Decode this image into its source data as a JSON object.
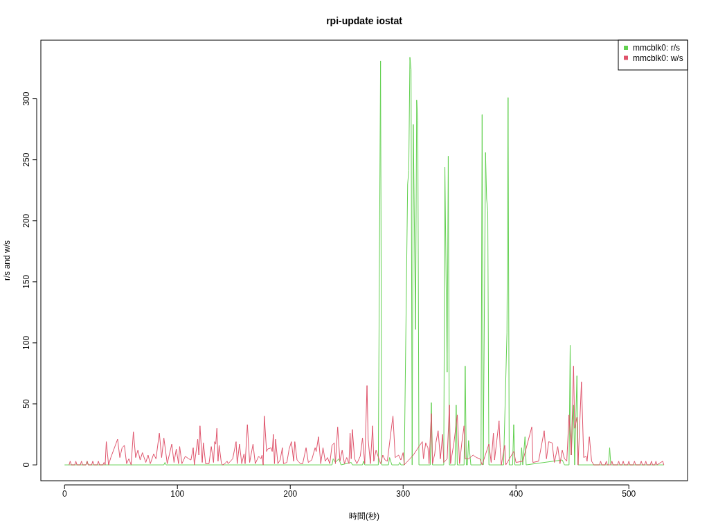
{
  "chart_data": {
    "type": "line",
    "title": "rpi-update iostat",
    "xlabel": "時間(秒)",
    "ylabel": "r/s and w/s",
    "xlim": [
      -21,
      552
    ],
    "ylim": [
      -13,
      348
    ],
    "xticks": [
      0,
      100,
      200,
      300,
      400,
      500
    ],
    "yticks": [
      0,
      50,
      100,
      150,
      200,
      250,
      300
    ],
    "grid": false,
    "legend": "top right",
    "marker": "none",
    "line_style": "solid",
    "series": [
      {
        "name": "mmcblk0: r/s",
        "color": "#61d04f",
        "x": [
          0,
          19,
          20,
          21,
          88,
          89,
          90,
          237,
          238,
          240,
          243,
          245,
          254,
          255,
          264,
          265,
          266,
          278,
          280,
          281,
          287,
          288,
          290,
          296,
          297,
          298,
          301,
          304,
          305,
          306,
          307,
          308,
          309,
          311,
          312,
          313,
          314,
          324,
          325,
          326,
          336,
          337,
          339,
          340,
          341,
          346,
          347,
          348,
          354,
          355,
          356,
          357,
          358,
          360,
          369,
          370,
          371,
          373,
          374,
          375,
          376,
          389,
          392,
          393,
          394,
          397,
          398,
          399,
          404,
          405,
          406,
          408,
          409,
          441,
          443,
          447,
          448,
          449,
          451,
          452,
          454,
          455,
          482,
          483,
          484,
          531
        ],
        "values": [
          0,
          0,
          3,
          0,
          0,
          2,
          0,
          0,
          5,
          2,
          5,
          0,
          2,
          0,
          0,
          3,
          0,
          0,
          331,
          0,
          0,
          6,
          0,
          0,
          2,
          0,
          0,
          230,
          241,
          334,
          324,
          0,
          279,
          111,
          299,
          282,
          0,
          0,
          51,
          0,
          0,
          244,
          76,
          253,
          0,
          0,
          49,
          0,
          0,
          81,
          0,
          0,
          20,
          0,
          0,
          287,
          0,
          256,
          218,
          208,
          0,
          0,
          108,
          301,
          0,
          0,
          33,
          0,
          0,
          14,
          0,
          23,
          0,
          4,
          0,
          0,
          98,
          8,
          49,
          0,
          73,
          0,
          0,
          14,
          0,
          0
        ]
      },
      {
        "name": "mmcblk0: w/s",
        "color": "#df536b",
        "x": [
          4,
          5,
          6,
          9,
          10,
          11,
          14,
          15,
          16,
          19,
          20,
          21,
          24,
          25,
          26,
          29,
          30,
          31,
          34,
          35,
          36,
          37,
          39,
          41,
          45,
          47,
          49,
          51,
          53,
          55,
          57,
          59,
          61,
          63,
          65,
          67,
          69,
          72,
          74,
          76,
          79,
          81,
          84,
          86,
          88,
          91,
          93,
          95,
          97,
          99,
          101,
          102,
          104,
          107,
          110,
          112,
          114,
          115,
          118,
          119,
          120,
          122,
          123,
          125,
          128,
          130,
          132,
          133,
          134,
          135,
          136,
          137,
          139,
          140,
          142,
          144,
          145,
          149,
          152,
          153,
          155,
          157,
          159,
          160,
          162,
          164,
          167,
          169,
          172,
          174,
          175,
          176,
          177,
          179,
          180,
          183,
          184,
          185,
          186,
          187,
          189,
          191,
          193,
          194,
          197,
          199,
          201,
          203,
          204,
          206,
          209,
          211,
          214,
          216,
          219,
          222,
          223,
          225,
          227,
          229,
          231,
          233,
          235,
          237,
          239,
          240,
          242,
          244,
          246,
          248,
          250,
          252,
          253,
          254,
          255,
          257,
          259,
          262,
          264,
          266,
          268,
          269,
          271,
          273,
          274,
          276,
          280,
          282,
          284,
          286,
          290,
          291,
          293,
          296,
          298,
          300,
          301,
          309,
          314,
          317,
          318,
          320,
          322,
          323,
          325,
          326,
          328,
          329,
          331,
          333,
          335,
          336,
          339,
          341,
          342,
          345,
          348,
          350,
          352,
          354,
          355,
          358,
          362,
          365,
          368,
          370,
          376,
          378,
          380,
          381,
          383,
          385,
          386,
          387,
          390,
          391,
          398,
          400,
          406,
          414,
          415,
          420,
          425,
          427,
          429,
          432,
          434,
          437,
          439,
          441,
          443,
          445,
          447,
          449,
          451,
          452,
          454,
          455,
          458,
          460,
          462,
          463,
          465,
          467,
          469,
          474,
          475,
          476,
          479,
          480,
          481,
          484,
          485,
          486,
          490,
          491,
          492,
          494,
          495,
          496,
          499,
          500,
          501,
          504,
          505,
          506,
          510,
          511,
          512,
          514,
          515,
          516,
          519,
          520,
          521,
          523,
          524,
          525,
          530,
          531
        ],
        "values": [
          0,
          3,
          0,
          0,
          3,
          0,
          0,
          3,
          0,
          0,
          3,
          0,
          0,
          3,
          0,
          0,
          3,
          0,
          0,
          2,
          0,
          19,
          0,
          6,
          16,
          21,
          6,
          14,
          16,
          1,
          5,
          0,
          27,
          6,
          12,
          4,
          10,
          2,
          8,
          1,
          9,
          5,
          26,
          6,
          22,
          1,
          9,
          17,
          2,
          13,
          1,
          15,
          1,
          7,
          5,
          4,
          14,
          0,
          21,
          8,
          32,
          2,
          18,
          1,
          1,
          15,
          2,
          19,
          17,
          30,
          3,
          16,
          1,
          0,
          1,
          3,
          1,
          5,
          19,
          1,
          17,
          1,
          9,
          1,
          33,
          2,
          17,
          1,
          7,
          5,
          8,
          0,
          40,
          11,
          13,
          14,
          11,
          25,
          1,
          21,
          1,
          4,
          14,
          1,
          2,
          13,
          19,
          3,
          19,
          4,
          1,
          1,
          14,
          2,
          4,
          14,
          11,
          23,
          1,
          14,
          3,
          6,
          1,
          16,
          18,
          1,
          31,
          3,
          12,
          1,
          6,
          1,
          26,
          5,
          29,
          5,
          1,
          7,
          22,
          1,
          65,
          21,
          1,
          32,
          3,
          12,
          1,
          8,
          4,
          3,
          33,
          40,
          6,
          8,
          4,
          10,
          0,
          8,
          15,
          19,
          5,
          18,
          14,
          1,
          42,
          1,
          9,
          18,
          28,
          5,
          25,
          2,
          5,
          49,
          1,
          18,
          41,
          1,
          18,
          32,
          5,
          5,
          8,
          6,
          5,
          0,
          17,
          2,
          26,
          4,
          20,
          36,
          14,
          0,
          16,
          0,
          11,
          2,
          3,
          31,
          2,
          3,
          28,
          5,
          19,
          18,
          2,
          15,
          1,
          12,
          5,
          3,
          41,
          8,
          81,
          30,
          39,
          0,
          68,
          6,
          7,
          3,
          23,
          3,
          0,
          0,
          3,
          0,
          0,
          3,
          0,
          0,
          3,
          0,
          0,
          3,
          0,
          0,
          3,
          0,
          0,
          3,
          0,
          0,
          3,
          0,
          0,
          3,
          0,
          0,
          3,
          0,
          0,
          3,
          0,
          0,
          3,
          0,
          3,
          0
        ]
      }
    ]
  }
}
